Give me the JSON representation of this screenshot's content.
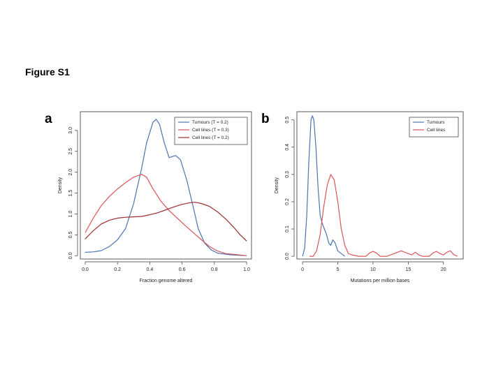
{
  "figure_title": "Figure S1",
  "panels": [
    {
      "letter": "a"
    },
    {
      "letter": "b"
    }
  ],
  "chart_data": [
    {
      "type": "line",
      "panel": "a",
      "title": "",
      "xlabel": "Fraction genome altered",
      "ylabel": "Density",
      "xlim": [
        -0.03,
        1.03
      ],
      "ylim": [
        -0.08,
        3.45
      ],
      "xticks": [
        0.0,
        0.2,
        0.4,
        0.6,
        0.8,
        1.0
      ],
      "xtick_labels": [
        "0.0",
        "0.2",
        "0.4",
        "0.6",
        "0.8",
        "1.0"
      ],
      "yticks": [
        0.0,
        0.5,
        1.0,
        1.5,
        2.0,
        2.5,
        3.0
      ],
      "ytick_labels": [
        "0.0",
        "0.5",
        "1.0",
        "1.5",
        "2.0",
        "2.5",
        "3.0"
      ],
      "legend_position": "top-right",
      "series": [
        {
          "name": "Tumours (T = 0.2)",
          "color": "#4a74b2",
          "points": [
            [
              0.0,
              0.08
            ],
            [
              0.05,
              0.09
            ],
            [
              0.1,
              0.12
            ],
            [
              0.15,
              0.22
            ],
            [
              0.2,
              0.38
            ],
            [
              0.25,
              0.65
            ],
            [
              0.3,
              1.25
            ],
            [
              0.35,
              2.1
            ],
            [
              0.38,
              2.7
            ],
            [
              0.42,
              3.2
            ],
            [
              0.44,
              3.27
            ],
            [
              0.46,
              3.15
            ],
            [
              0.49,
              2.7
            ],
            [
              0.52,
              2.35
            ],
            [
              0.56,
              2.4
            ],
            [
              0.59,
              2.3
            ],
            [
              0.63,
              1.8
            ],
            [
              0.67,
              1.15
            ],
            [
              0.7,
              0.65
            ],
            [
              0.74,
              0.3
            ],
            [
              0.78,
              0.14
            ],
            [
              0.82,
              0.06
            ],
            [
              0.86,
              0.04
            ],
            [
              0.9,
              0.02
            ],
            [
              0.95,
              0.01
            ],
            [
              1.0,
              0.0
            ]
          ]
        },
        {
          "name": "Cell lines (T = 0.3)",
          "color": "#d9555a",
          "points": [
            [
              0.0,
              0.55
            ],
            [
              0.05,
              0.9
            ],
            [
              0.1,
              1.2
            ],
            [
              0.15,
              1.42
            ],
            [
              0.2,
              1.6
            ],
            [
              0.25,
              1.75
            ],
            [
              0.3,
              1.88
            ],
            [
              0.35,
              1.95
            ],
            [
              0.38,
              1.88
            ],
            [
              0.42,
              1.6
            ],
            [
              0.47,
              1.3
            ],
            [
              0.52,
              1.08
            ],
            [
              0.57,
              0.9
            ],
            [
              0.62,
              0.72
            ],
            [
              0.67,
              0.55
            ],
            [
              0.72,
              0.38
            ],
            [
              0.77,
              0.22
            ],
            [
              0.82,
              0.11
            ],
            [
              0.87,
              0.05
            ],
            [
              0.92,
              0.03
            ],
            [
              1.0,
              0.0
            ]
          ]
        },
        {
          "name": "Cell lines (T = 0.2)",
          "color": "#9e2c2c",
          "points": [
            [
              0.0,
              0.4
            ],
            [
              0.05,
              0.6
            ],
            [
              0.1,
              0.76
            ],
            [
              0.15,
              0.85
            ],
            [
              0.2,
              0.9
            ],
            [
              0.25,
              0.92
            ],
            [
              0.3,
              0.93
            ],
            [
              0.35,
              0.94
            ],
            [
              0.4,
              0.98
            ],
            [
              0.45,
              1.03
            ],
            [
              0.5,
              1.1
            ],
            [
              0.55,
              1.17
            ],
            [
              0.6,
              1.23
            ],
            [
              0.65,
              1.27
            ],
            [
              0.68,
              1.28
            ],
            [
              0.72,
              1.25
            ],
            [
              0.77,
              1.18
            ],
            [
              0.82,
              1.05
            ],
            [
              0.87,
              0.88
            ],
            [
              0.92,
              0.68
            ],
            [
              0.96,
              0.5
            ],
            [
              1.0,
              0.35
            ]
          ]
        }
      ]
    },
    {
      "type": "line",
      "panel": "b",
      "title": "",
      "xlabel": "Mutations per million bases",
      "ylabel": "Density",
      "xlim": [
        -0.8,
        22.8
      ],
      "ylim": [
        -0.01,
        0.53
      ],
      "xticks": [
        0,
        5,
        10,
        15,
        20
      ],
      "xtick_labels": [
        "0",
        "5",
        "10",
        "15",
        "20"
      ],
      "yticks": [
        0.0,
        0.1,
        0.2,
        0.3,
        0.4,
        0.5
      ],
      "ytick_labels": [
        "0.0",
        "0.1",
        "0.2",
        "0.3",
        "0.4",
        "0.5"
      ],
      "legend_position": "top-right",
      "series": [
        {
          "name": "Tumours",
          "color": "#4a74b2",
          "points": [
            [
              0.0,
              0.0
            ],
            [
              0.3,
              0.03
            ],
            [
              0.6,
              0.15
            ],
            [
              0.9,
              0.35
            ],
            [
              1.2,
              0.5
            ],
            [
              1.4,
              0.515
            ],
            [
              1.6,
              0.5
            ],
            [
              1.9,
              0.4
            ],
            [
              2.2,
              0.25
            ],
            [
              2.5,
              0.15
            ],
            [
              2.8,
              0.12
            ],
            [
              3.1,
              0.1
            ],
            [
              3.4,
              0.08
            ],
            [
              3.7,
              0.05
            ],
            [
              4.0,
              0.04
            ],
            [
              4.3,
              0.06
            ],
            [
              4.6,
              0.05
            ],
            [
              5.0,
              0.02
            ],
            [
              5.5,
              0.01
            ],
            [
              6.0,
              0.0
            ]
          ]
        },
        {
          "name": "Cell lines",
          "color": "#d9555a",
          "points": [
            [
              1.0,
              0.0
            ],
            [
              1.5,
              0.0
            ],
            [
              2.0,
              0.02
            ],
            [
              2.5,
              0.08
            ],
            [
              3.0,
              0.18
            ],
            [
              3.5,
              0.26
            ],
            [
              4.0,
              0.3
            ],
            [
              4.5,
              0.28
            ],
            [
              5.0,
              0.2
            ],
            [
              5.5,
              0.1
            ],
            [
              6.0,
              0.04
            ],
            [
              6.5,
              0.01
            ],
            [
              7.0,
              0.005
            ],
            [
              8.0,
              0.0
            ],
            [
              9.0,
              0.0
            ],
            [
              9.5,
              0.012
            ],
            [
              10.0,
              0.018
            ],
            [
              10.5,
              0.012
            ],
            [
              11.0,
              0.0
            ],
            [
              12.0,
              0.0
            ],
            [
              13.0,
              0.01
            ],
            [
              14.0,
              0.02
            ],
            [
              15.0,
              0.01
            ],
            [
              15.5,
              0.005
            ],
            [
              16.0,
              0.015
            ],
            [
              16.5,
              0.005
            ],
            [
              17.0,
              0.0
            ],
            [
              18.0,
              0.0
            ],
            [
              18.5,
              0.012
            ],
            [
              19.0,
              0.018
            ],
            [
              19.5,
              0.01
            ],
            [
              20.0,
              0.005
            ],
            [
              20.5,
              0.015
            ],
            [
              21.0,
              0.02
            ],
            [
              21.5,
              0.005
            ],
            [
              22.0,
              0.0
            ]
          ]
        }
      ]
    }
  ]
}
